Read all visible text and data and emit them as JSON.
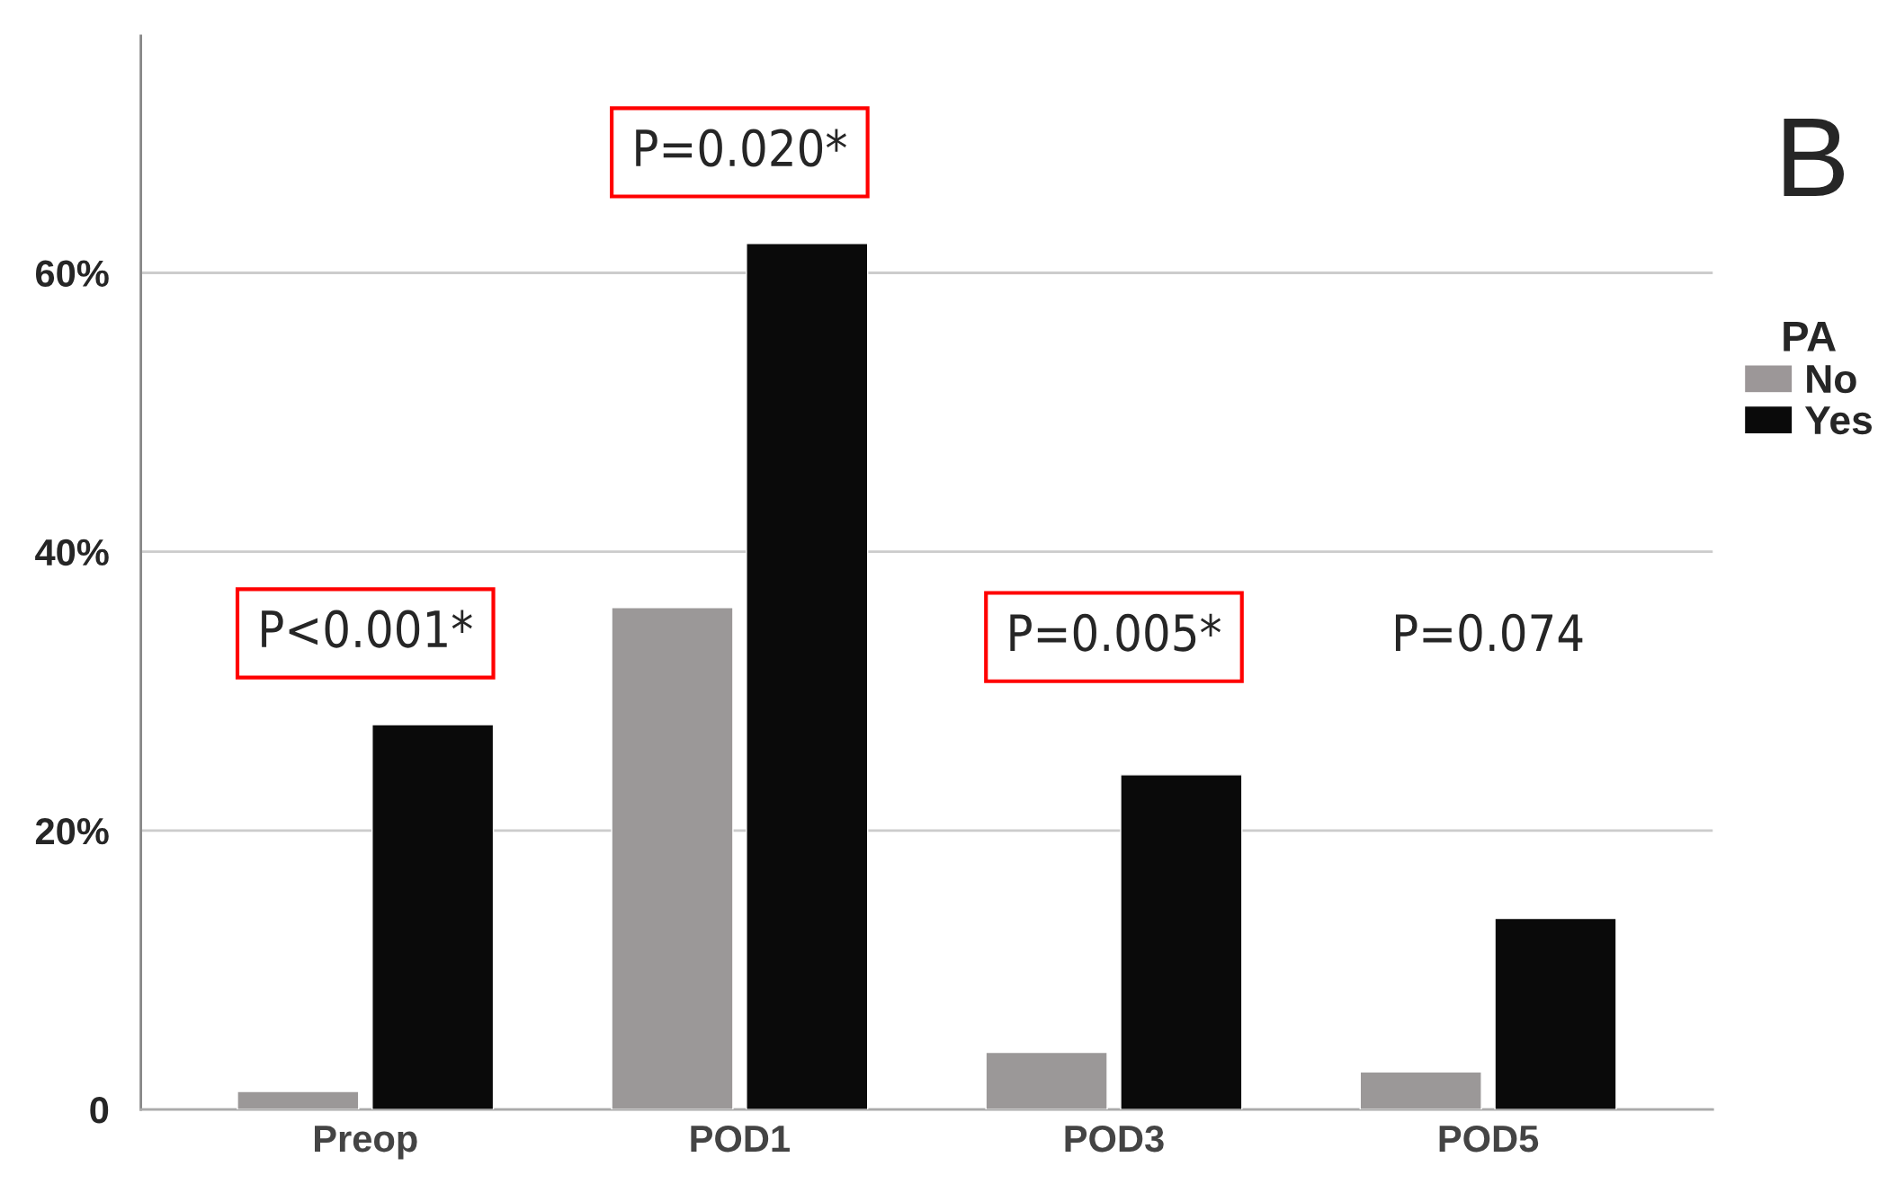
{
  "chart_data": {
    "type": "bar",
    "categories": [
      "Preop",
      "POD1",
      "POD3",
      "POD5"
    ],
    "series": [
      {
        "name": "No",
        "color": "#9c9798",
        "values": [
          1.3,
          36.0,
          4.1,
          2.7
        ]
      },
      {
        "name": "Yes",
        "color": "#0a0a0a",
        "values": [
          27.6,
          62.1,
          24.0,
          13.7
        ]
      }
    ],
    "legend_title": "PA",
    "legend": "right",
    "ylim": [
      0,
      77
    ],
    "yticks": [
      {
        "value": 0,
        "label": "0"
      },
      {
        "value": 20,
        "label": "20%"
      },
      {
        "value": 40,
        "label": "40%"
      },
      {
        "value": 60,
        "label": "60%"
      }
    ],
    "grid": "y",
    "annotations": [
      "P<0.001*",
      "P=0.020*",
      "P=0.005*",
      "P=0.074",
      "B"
    ]
  }
}
